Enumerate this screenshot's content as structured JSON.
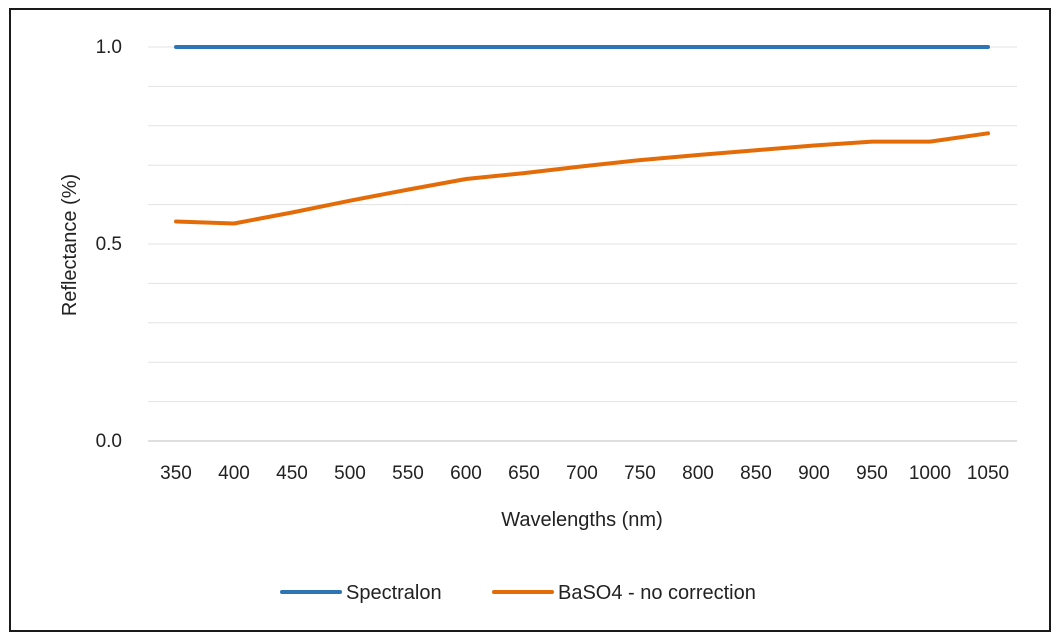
{
  "chart_data": {
    "type": "line",
    "xlabel": "Wavelengths (nm)",
    "ylabel": "Reflectance (%)",
    "x": [
      350,
      400,
      450,
      500,
      550,
      600,
      650,
      700,
      750,
      800,
      850,
      900,
      950,
      1000,
      1050
    ],
    "ylim": [
      0.0,
      1.0
    ],
    "y_ticks": [
      "0.0",
      "0.5",
      "1.0"
    ],
    "grid": true,
    "legend_position": "bottom",
    "series": [
      {
        "name": "Spectralon",
        "color": "#2e75b6",
        "values": [
          1.0,
          1.0,
          1.0,
          1.0,
          1.0,
          1.0,
          1.0,
          1.0,
          1.0,
          1.0,
          1.0,
          1.0,
          1.0,
          1.0,
          1.0
        ]
      },
      {
        "name": "BaSO4 - no correction",
        "color": "#e36c09",
        "values": [
          0.557,
          0.552,
          0.58,
          0.61,
          0.638,
          0.665,
          0.68,
          0.697,
          0.713,
          0.726,
          0.738,
          0.75,
          0.76,
          0.76,
          0.781
        ]
      }
    ]
  }
}
